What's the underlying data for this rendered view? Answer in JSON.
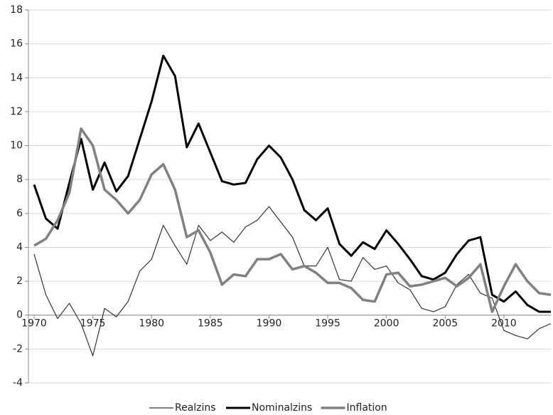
{
  "chart_data": {
    "type": "line",
    "x": [
      1970,
      1971,
      1972,
      1973,
      1974,
      1975,
      1976,
      1977,
      1978,
      1979,
      1980,
      1981,
      1982,
      1983,
      1984,
      1985,
      1986,
      1987,
      1988,
      1989,
      1990,
      1991,
      1992,
      1993,
      1994,
      1995,
      1996,
      1997,
      1998,
      1999,
      2000,
      2001,
      2002,
      2003,
      2004,
      2005,
      2006,
      2007,
      2008,
      2009,
      2010,
      2011,
      2012,
      2013,
      2014
    ],
    "xlim": [
      1970,
      2014
    ],
    "xticks": [
      1970,
      1975,
      1980,
      1985,
      1990,
      1995,
      2000,
      2005,
      2010
    ],
    "ylim": [
      -4,
      18
    ],
    "yticks": [
      -4,
      -2,
      0,
      2,
      4,
      6,
      8,
      10,
      12,
      14,
      16,
      18
    ],
    "grid": true,
    "legend": "bottom",
    "series": [
      {
        "name": "Realzins",
        "color": "#333333",
        "values": [
          3.6,
          1.2,
          -0.2,
          0.7,
          -0.5,
          -2.4,
          0.4,
          -0.1,
          0.8,
          2.6,
          3.3,
          5.3,
          4.1,
          3.0,
          5.3,
          4.4,
          4.9,
          4.3,
          5.2,
          5.6,
          6.4,
          5.5,
          4.6,
          2.9,
          2.9,
          4.0,
          2.1,
          2.0,
          3.4,
          2.7,
          2.9,
          1.9,
          1.5,
          0.4,
          0.2,
          0.5,
          1.8,
          2.4,
          1.3,
          1.0,
          -0.9,
          -1.2,
          -1.4,
          -0.8,
          -0.5
        ]
      },
      {
        "name": "Nominalzins",
        "color": "#000000",
        "values": [
          7.7,
          5.7,
          5.1,
          7.8,
          10.4,
          7.4,
          9.0,
          7.3,
          8.2,
          10.4,
          12.6,
          15.3,
          14.1,
          9.9,
          11.3,
          9.6,
          7.9,
          7.7,
          7.8,
          9.2,
          10.0,
          9.3,
          8.0,
          6.2,
          5.6,
          6.3,
          4.2,
          3.5,
          4.3,
          3.9,
          5.0,
          4.2,
          3.3,
          2.3,
          2.1,
          2.5,
          3.6,
          4.4,
          4.6,
          1.2,
          0.8,
          1.4,
          0.6,
          0.2,
          0.2
        ]
      },
      {
        "name": "Inflation",
        "color": "#808080",
        "values": [
          4.1,
          4.5,
          5.6,
          7.2,
          11.0,
          10.0,
          7.4,
          6.8,
          6.0,
          6.8,
          8.3,
          8.9,
          7.4,
          4.6,
          5.0,
          3.7,
          1.8,
          2.4,
          2.3,
          3.3,
          3.3,
          3.6,
          2.7,
          2.9,
          2.5,
          1.9,
          1.9,
          1.6,
          0.9,
          0.8,
          2.4,
          2.5,
          1.7,
          1.8,
          2.0,
          2.2,
          1.7,
          2.2,
          3.0,
          0.2,
          1.7,
          3.0,
          2.0,
          1.3,
          1.2
        ]
      }
    ]
  }
}
